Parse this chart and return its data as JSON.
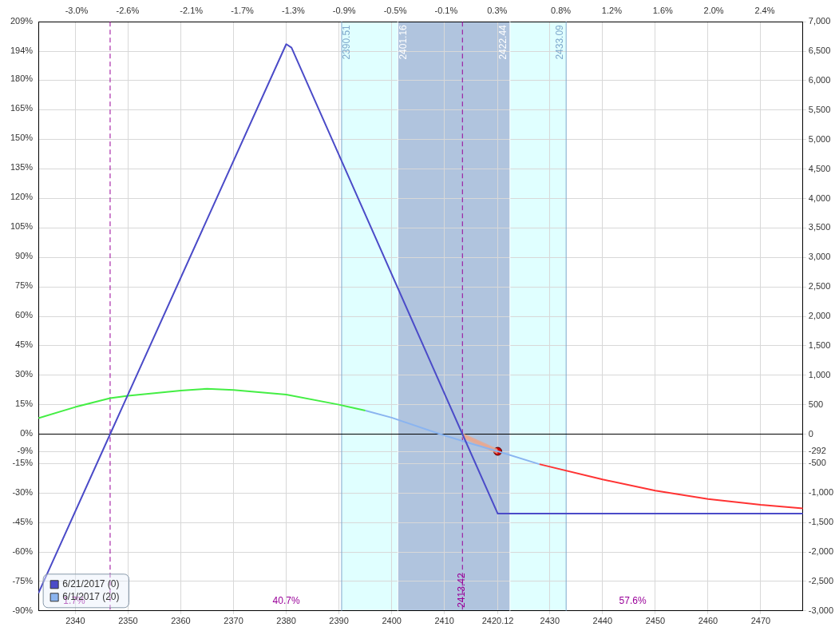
{
  "chart_data": {
    "type": "line",
    "xlim": [
      2333,
      2478
    ],
    "xticks": [
      2340,
      2350,
      2360,
      2370,
      2380,
      2390,
      2400,
      2410,
      2420.12,
      2430,
      2440,
      2450,
      2460,
      2470
    ],
    "x2lim": [
      -3.3,
      2.7
    ],
    "x2ticks": [
      {
        "value": -3.0,
        "label": "-3.0%"
      },
      {
        "value": -2.6,
        "label": "-2.6%"
      },
      {
        "value": -2.1,
        "label": "-2.1%"
      },
      {
        "value": -1.7,
        "label": "-1.7%"
      },
      {
        "value": -1.3,
        "label": "-1.3%"
      },
      {
        "value": -0.9,
        "label": "-0.9%"
      },
      {
        "value": -0.5,
        "label": "-0.5%"
      },
      {
        "value": -0.1,
        "label": "-0.1%"
      },
      {
        "value": 0.3,
        "label": "0.3%"
      },
      {
        "value": 0.8,
        "label": "0.8%"
      },
      {
        "value": 1.2,
        "label": "1.2%"
      },
      {
        "value": 1.6,
        "label": "1.6%"
      },
      {
        "value": 2.0,
        "label": "2.0%"
      },
      {
        "value": 2.4,
        "label": "2.4%"
      }
    ],
    "ylim": [
      -3000,
      7000
    ],
    "yticks": [
      {
        "value": 7000,
        "label": "7,000"
      },
      {
        "value": 6500,
        "label": "6,500"
      },
      {
        "value": 6000,
        "label": "6,000"
      },
      {
        "value": 5500,
        "label": "5,500"
      },
      {
        "value": 5000,
        "label": "5,000"
      },
      {
        "value": 4500,
        "label": "4,500"
      },
      {
        "value": 4000,
        "label": "4,000"
      },
      {
        "value": 3500,
        "label": "3,500"
      },
      {
        "value": 3000,
        "label": "3,000"
      },
      {
        "value": 2500,
        "label": "2,500"
      },
      {
        "value": 2000,
        "label": "2,000"
      },
      {
        "value": 1500,
        "label": "1,500"
      },
      {
        "value": 1000,
        "label": "1,000"
      },
      {
        "value": 500,
        "label": "500"
      },
      0,
      {
        "value": -292,
        "label": "-292"
      },
      {
        "value": -500,
        "label": "-500"
      },
      {
        "value": -1000,
        "label": "-1,000"
      },
      {
        "value": -1500,
        "label": "-1,500"
      },
      {
        "value": -2000,
        "label": "-2,000"
      },
      {
        "value": -2500,
        "label": "-2,500"
      },
      {
        "value": -3000,
        "label": "-3,000"
      }
    ],
    "y2lim": [
      -90,
      209
    ],
    "y2ticks": [
      {
        "value": 209,
        "label": "209%"
      },
      {
        "value": 194,
        "label": "194%"
      },
      {
        "value": 180,
        "label": "180%"
      },
      {
        "value": 165,
        "label": "165%"
      },
      {
        "value": 150,
        "label": "150%"
      },
      {
        "value": 135,
        "label": "135%"
      },
      {
        "value": 120,
        "label": "120%"
      },
      {
        "value": 105,
        "label": "105%"
      },
      {
        "value": 90,
        "label": "90%"
      },
      {
        "value": 75,
        "label": "75%"
      },
      {
        "value": 60,
        "label": "60%"
      },
      {
        "value": 45,
        "label": "45%"
      },
      {
        "value": 30,
        "label": "30%"
      },
      {
        "value": 15,
        "label": "15%"
      },
      {
        "value": 0,
        "label": "0%"
      },
      {
        "value": -9,
        "label": "-9%"
      },
      {
        "value": -15,
        "label": "-15%"
      },
      {
        "value": -30,
        "label": "-30%"
      },
      {
        "value": -45,
        "label": "-45%"
      },
      {
        "value": -60,
        "label": "-60%"
      },
      {
        "value": -75,
        "label": "-75%"
      },
      {
        "value": -90,
        "label": "-90%"
      }
    ],
    "grid": true,
    "legend": "bottom left",
    "bands": [
      {
        "axis": "x",
        "from": 2390.51,
        "to": 2433.09,
        "color": "#e0ffff"
      },
      {
        "axis": "x",
        "from": 2401.16,
        "to": 2422.44,
        "color": "#b0c4de"
      }
    ],
    "ref_lines": [
      {
        "axis": "x",
        "value": 2390.51,
        "label": "2390.51",
        "color": "#7fa8cc"
      },
      {
        "axis": "x",
        "value": 2401.16,
        "label": "2401.16",
        "color": "#ffffff"
      },
      {
        "axis": "x",
        "value": 2422.44,
        "label": "2422.44",
        "color": "#ffffff"
      },
      {
        "axis": "x",
        "value": 2433.09,
        "label": "2433.09",
        "color": "#7fa8cc"
      },
      {
        "axis": "x",
        "value": 2346.6,
        "color": "#990099",
        "line_style": "dashed"
      },
      {
        "axis": "x",
        "value": 2413.42,
        "label": "2413.42",
        "color": "#990099",
        "line_style": "dashed"
      },
      {
        "axis": "y",
        "value": 0,
        "color": "#000000"
      }
    ],
    "annotations": [
      "1.7%",
      "40.7%",
      "57.6%"
    ],
    "series": [
      {
        "name": "6/21/2017 (0)",
        "color": "#4b4bc8",
        "x": [
          2333,
          2346.6,
          2380,
          2381,
          2413.42,
          2420.12,
          2478
        ],
        "values": [
          -2700,
          0,
          6620,
          6560,
          0,
          -1350,
          -1350
        ]
      },
      {
        "color": "#44ee44",
        "x": [
          2333,
          2340,
          2346.6,
          2350,
          2360,
          2365,
          2370,
          2380,
          2390,
          2395
        ],
        "values": [
          270,
          460,
          610,
          650,
          740,
          770,
          750,
          670,
          500,
          400
        ]
      },
      {
        "name": "6/1/2017 (20)",
        "color": "#8ab4f0",
        "x": [
          2395,
          2400,
          2409.2,
          2415,
          2420.12,
          2428
        ],
        "values": [
          400,
          280,
          0,
          -160,
          -292,
          -510
        ]
      },
      {
        "color": "#ff3333",
        "x": [
          2428,
          2440,
          2450,
          2460,
          2470,
          2478
        ],
        "values": [
          -510,
          -770,
          -960,
          -1100,
          -1200,
          -1260
        ]
      },
      {
        "color": "#e8a890",
        "x": [
          2413.42,
          2420.12
        ],
        "values": [
          -20,
          -290
        ],
        "lower": [
          -70,
          -340
        ],
        "upper": [
          20,
          -250
        ]
      },
      {
        "type": "scatter",
        "color": "#cc0000",
        "marker": "circle",
        "x": [
          2420.12
        ],
        "values": [
          -292
        ]
      }
    ]
  }
}
